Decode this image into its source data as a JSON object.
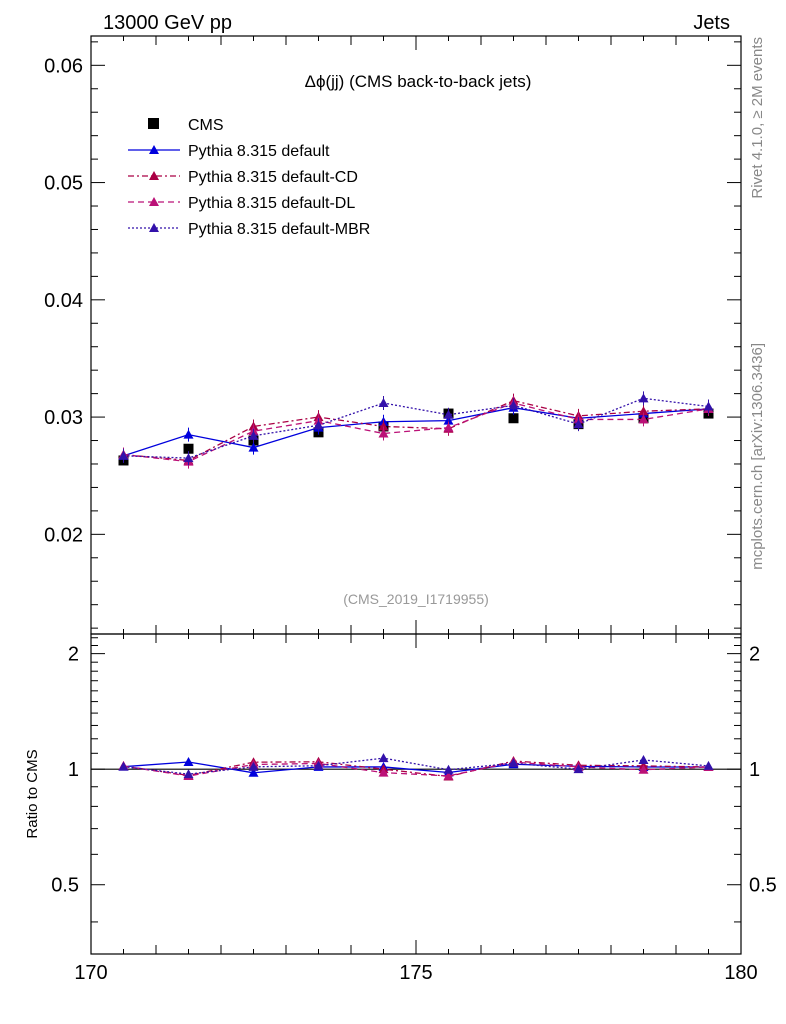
{
  "header": {
    "left": "13000 GeV pp",
    "right": "Jets"
  },
  "side_text": {
    "top": "Rivet 4.1.0, ≥ 2M events",
    "bottom": "mcplots.cern.ch [arXiv:1306.3436]"
  },
  "chart_data": {
    "type": "line",
    "title": "Δϕ(jj) (CMS back-to-back jets)",
    "watermark": "(CMS_2019_I1719955)",
    "xlabel": "",
    "ylabel": "",
    "ratio_ylabel": "Ratio to CMS",
    "xlim": [
      170,
      180
    ],
    "ylim": [
      0.0115,
      0.0625
    ],
    "ratio_ylim": [
      0.33,
      2.25
    ],
    "x_ticks": [
      "170",
      "175",
      "180"
    ],
    "x_tick_values": [
      170,
      175,
      180
    ],
    "y_ticks": [
      "0.02",
      "0.03",
      "0.04",
      "0.05",
      "0.06"
    ],
    "y_tick_values": [
      0.02,
      0.03,
      0.04,
      0.05,
      0.06
    ],
    "ratio_ticks": [
      "0.5",
      "1",
      "2"
    ],
    "ratio_tick_values": [
      0.5,
      1,
      2
    ],
    "x": [
      170.5,
      171.5,
      172.5,
      173.5,
      174.5,
      175.5,
      176.5,
      177.5,
      178.5,
      179.5
    ],
    "series": [
      {
        "name": "CMS",
        "style": "marker",
        "color": "#000000",
        "values": [
          0.0263,
          0.0273,
          0.028,
          0.0287,
          0.0292,
          0.0303,
          0.0299,
          0.0294,
          0.0299,
          0.0303
        ]
      },
      {
        "name": "Pythia 8.315 default",
        "style": "solid",
        "color": "#0000dd",
        "values": [
          0.0267,
          0.0285,
          0.0274,
          0.0291,
          0.0296,
          0.0297,
          0.0308,
          0.0299,
          0.0303,
          0.0307
        ]
      },
      {
        "name": "Pythia 8.315 default-CD",
        "style": "dashdot",
        "color": "#aa0044",
        "values": [
          0.0268,
          0.0263,
          0.0292,
          0.03,
          0.0292,
          0.029,
          0.0314,
          0.0301,
          0.0305,
          0.0307
        ]
      },
      {
        "name": "Pythia 8.315 default-DL",
        "style": "dashed",
        "color": "#bb1177",
        "values": [
          0.0268,
          0.0262,
          0.0288,
          0.0297,
          0.0286,
          0.0291,
          0.0312,
          0.0298,
          0.0298,
          0.0307
        ]
      },
      {
        "name": "Pythia 8.315 default-MBR",
        "style": "dotted",
        "color": "#3311aa",
        "values": [
          0.0267,
          0.0265,
          0.0284,
          0.0293,
          0.0312,
          0.0302,
          0.031,
          0.0294,
          0.0316,
          0.0309
        ]
      }
    ]
  }
}
